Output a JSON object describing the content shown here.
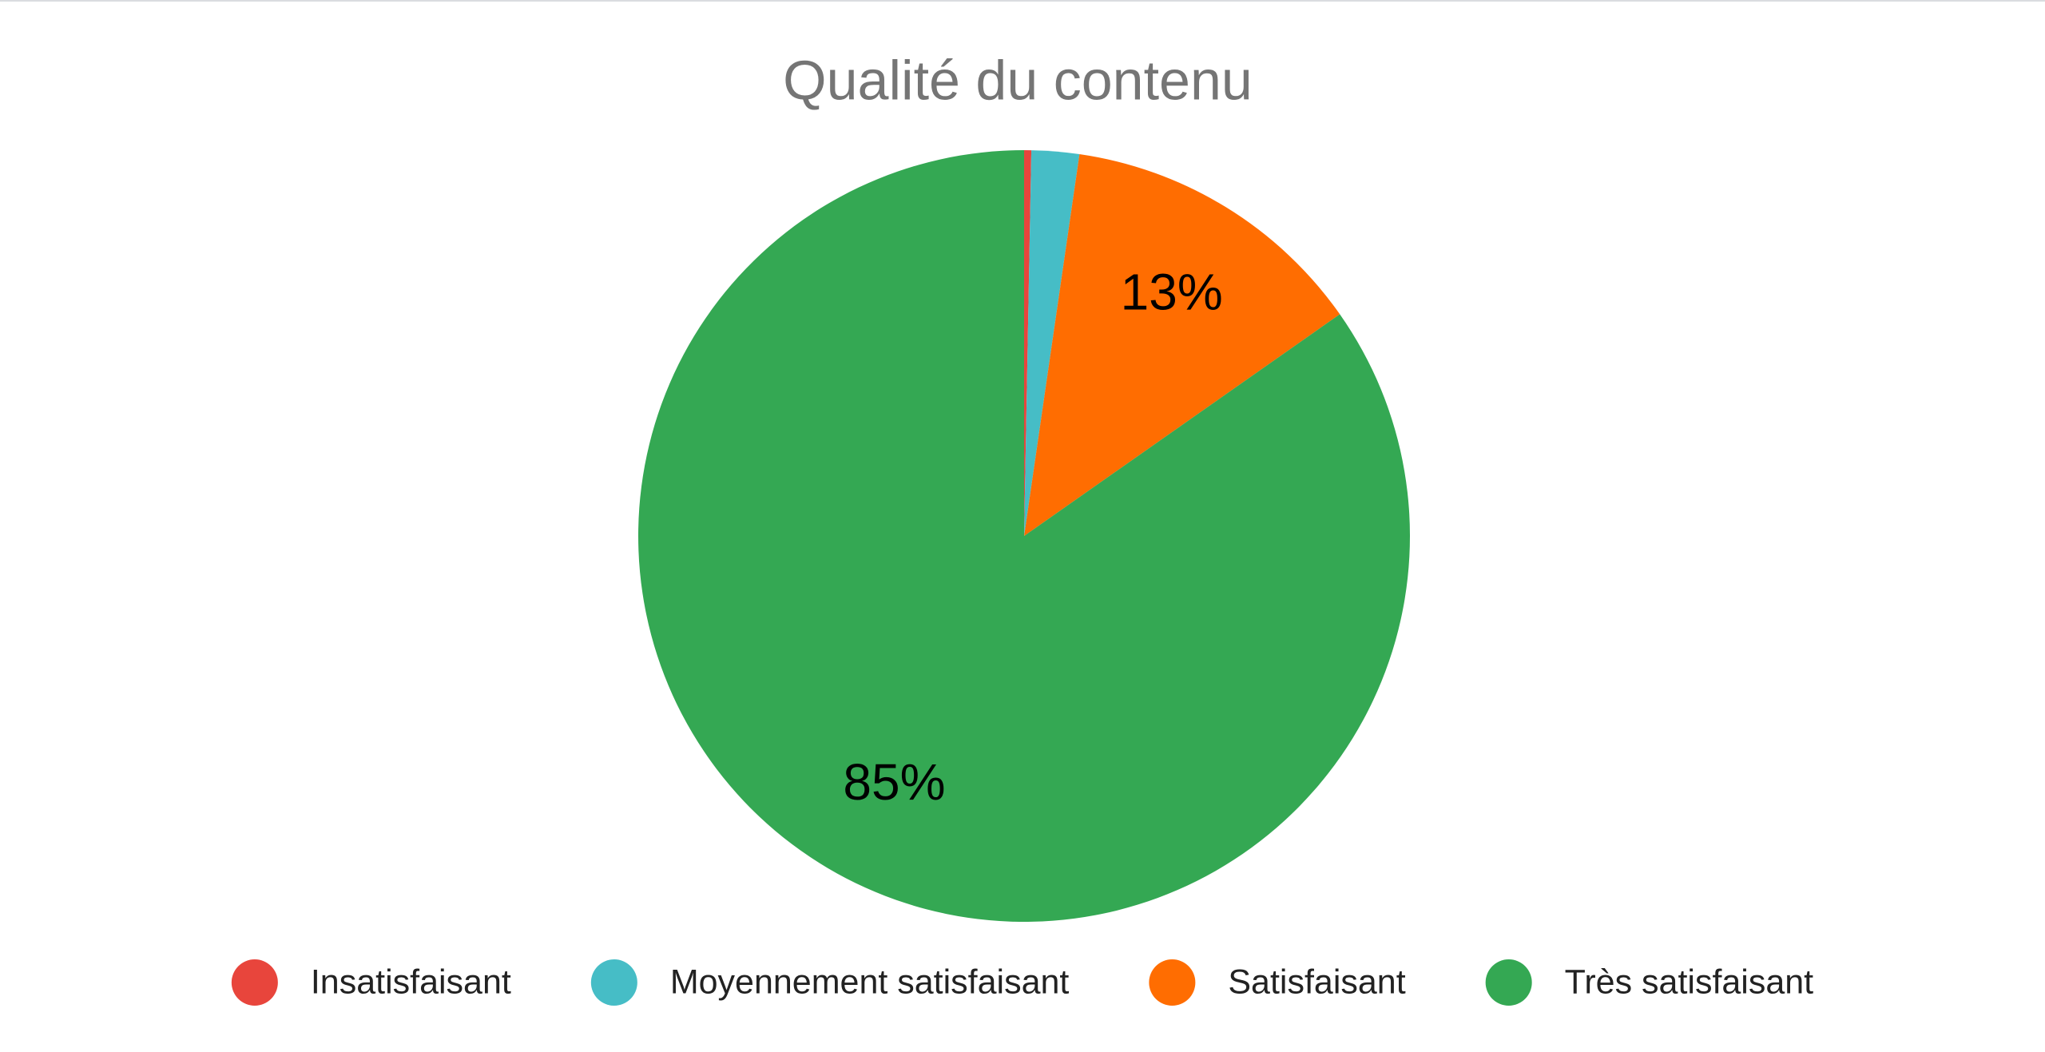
{
  "chart_data": {
    "type": "pie",
    "title": "Qualité du contenu",
    "categories": [
      "Insatisfaisant",
      "Moyennement satisfaisant",
      "Satisfaisant",
      "Très satisfaisant"
    ],
    "values": [
      0.3,
      2,
      13,
      85
    ],
    "value_labels": [
      null,
      null,
      "13%",
      "85%"
    ],
    "colors": [
      "#e8453c",
      "#46bdc6",
      "#ff6d01",
      "#34a853"
    ],
    "legend": "bottom"
  }
}
